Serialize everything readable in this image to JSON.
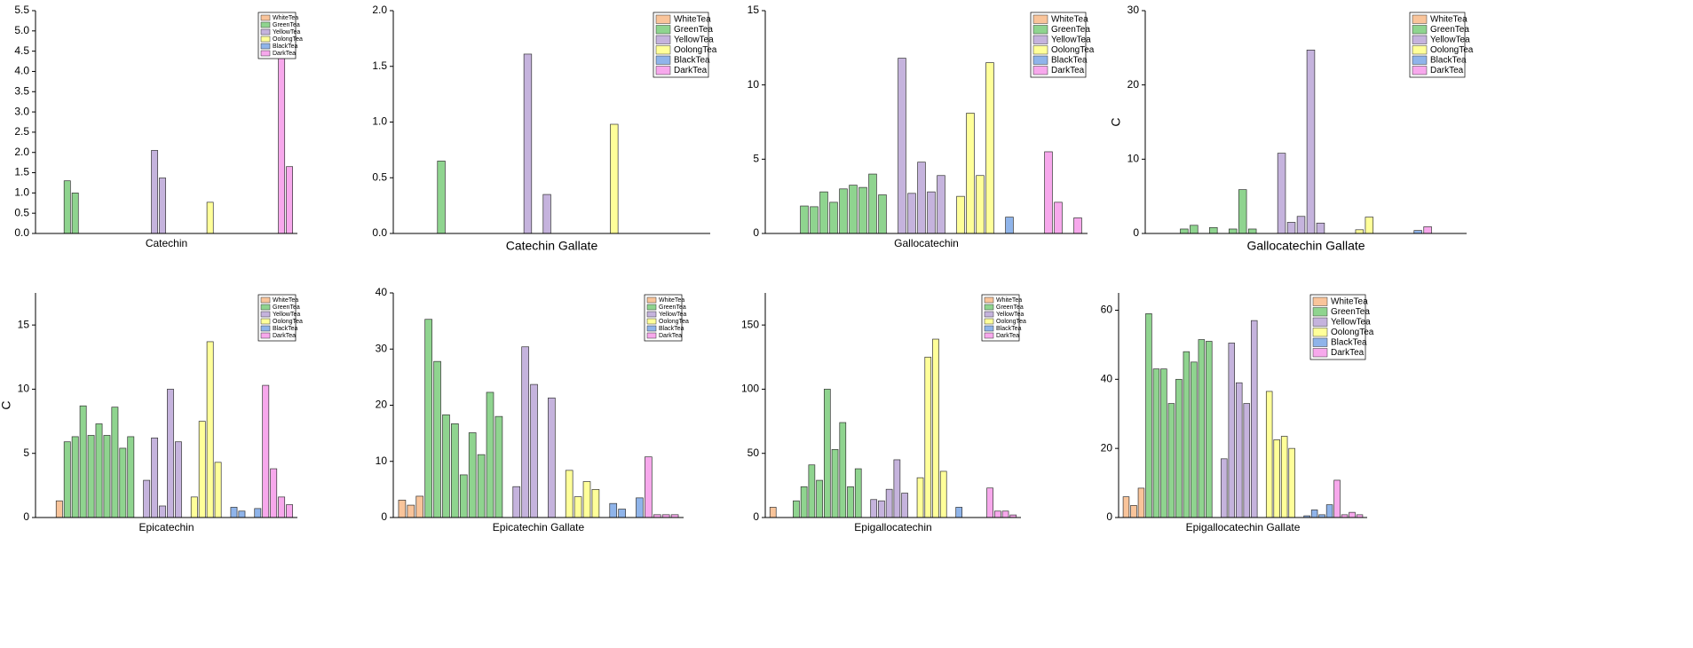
{
  "chart_data": [
    {
      "type": "bar",
      "xlabel": "Catechin",
      "ylim": [
        0,
        5.5
      ],
      "yticks": [
        {
          "value": 0,
          "label": "0.0"
        },
        0.5,
        {
          "value": 1,
          "label": "1.0"
        },
        1.5,
        {
          "value": 2,
          "label": "2.0"
        },
        2.5,
        {
          "value": 3,
          "label": "3.0"
        },
        3.5,
        {
          "value": 4,
          "label": "4.0"
        },
        4.5,
        {
          "value": 5,
          "label": "5.0"
        },
        5.5
      ],
      "series": [
        {
          "name": "WhiteTea",
          "color": "#f9c49a",
          "values": [
            null,
            null,
            null
          ]
        },
        {
          "name": "GreenTea",
          "color": "#8fd48f",
          "values": [
            1.3,
            1.0,
            null,
            null,
            null,
            null,
            null,
            null,
            null,
            null
          ]
        },
        {
          "name": "YellowTea",
          "color": "#c5b3dd",
          "values": [
            null,
            2.05,
            1.37,
            null,
            null,
            null
          ]
        },
        {
          "name": "OolongTea",
          "color": "#ffff99",
          "values": [
            null,
            null,
            0.77,
            null,
            null
          ]
        },
        {
          "name": "BlackTea",
          "color": "#8fb4ea",
          "values": [
            null,
            null,
            null,
            null
          ]
        },
        {
          "name": "DarkTea",
          "color": "#f7a8ec",
          "values": [
            null,
            null,
            4.92,
            1.65
          ]
        }
      ]
    },
    {
      "type": "bar",
      "xlabel": "Catechin Gallate",
      "ylim": [
        0,
        2
      ],
      "yticks": [
        {
          "value": 0,
          "label": "0.0"
        },
        0.5,
        {
          "value": 1,
          "label": "1.0"
        },
        1.5,
        {
          "value": 2,
          "label": "2.0"
        }
      ],
      "series": [
        {
          "name": "WhiteTea",
          "color": "#f9c49a",
          "values": [
            null,
            null,
            null
          ]
        },
        {
          "name": "GreenTea",
          "color": "#8fd48f",
          "values": [
            null,
            0.65,
            null,
            null,
            null,
            null,
            null,
            null,
            null,
            null
          ]
        },
        {
          "name": "YellowTea",
          "color": "#c5b3dd",
          "values": [
            1.61,
            null,
            0.35,
            null,
            null,
            null
          ]
        },
        {
          "name": "OolongTea",
          "color": "#ffff99",
          "values": [
            null,
            null,
            null,
            0.98,
            null
          ]
        },
        {
          "name": "BlackTea",
          "color": "#8fb4ea",
          "values": [
            null,
            null,
            null,
            null
          ]
        },
        {
          "name": "DarkTea",
          "color": "#f7a8ec",
          "values": [
            null,
            null,
            null,
            null
          ]
        }
      ]
    },
    {
      "type": "bar",
      "xlabel": "Gallocatechin",
      "ylim": [
        0,
        15
      ],
      "yticks": [
        0,
        5,
        10,
        15
      ],
      "series": [
        {
          "name": "WhiteTea",
          "color": "#f9c49a",
          "values": [
            null,
            null,
            null
          ]
        },
        {
          "name": "GreenTea",
          "color": "#8fd48f",
          "values": [
            1.85,
            1.8,
            2.8,
            2.1,
            3.0,
            3.25,
            3.1,
            4.0,
            2.6,
            null
          ]
        },
        {
          "name": "YellowTea",
          "color": "#c5b3dd",
          "values": [
            11.8,
            2.7,
            4.8,
            2.8,
            3.9,
            null
          ]
        },
        {
          "name": "OolongTea",
          "color": "#ffff99",
          "values": [
            2.5,
            8.1,
            3.9,
            11.5,
            null
          ]
        },
        {
          "name": "BlackTea",
          "color": "#8fb4ea",
          "values": [
            1.1,
            null,
            null,
            null
          ]
        },
        {
          "name": "DarkTea",
          "color": "#f7a8ec",
          "values": [
            5.5,
            2.1,
            null,
            1.05
          ]
        }
      ]
    },
    {
      "type": "bar",
      "xlabel": "Gallocatechin Gallate",
      "ylabel": "C",
      "ylim": [
        0,
        30
      ],
      "yticks": [
        0,
        10,
        20,
        30
      ],
      "series": [
        {
          "name": "WhiteTea",
          "color": "#f9c49a",
          "values": [
            null,
            null,
            null
          ]
        },
        {
          "name": "GreenTea",
          "color": "#8fd48f",
          "values": [
            0.6,
            1.1,
            null,
            0.8,
            null,
            0.6,
            5.9,
            0.6,
            null,
            null
          ]
        },
        {
          "name": "YellowTea",
          "color": "#c5b3dd",
          "values": [
            10.8,
            1.5,
            2.3,
            24.7,
            1.4,
            null
          ]
        },
        {
          "name": "OolongTea",
          "color": "#ffff99",
          "values": [
            null,
            null,
            0.5,
            2.2,
            null
          ]
        },
        {
          "name": "BlackTea",
          "color": "#8fb4ea",
          "values": [
            null,
            null,
            null,
            0.4
          ]
        },
        {
          "name": "DarkTea",
          "color": "#f7a8ec",
          "values": [
            0.9,
            null,
            null,
            null
          ]
        }
      ]
    },
    {
      "type": "bar",
      "xlabel": "Epicatechin",
      "ylabel": "C",
      "ylim": [
        0,
        17.5
      ],
      "yticks": [
        0,
        5,
        10,
        15
      ],
      "series": [
        {
          "name": "WhiteTea",
          "color": "#f9c49a",
          "values": [
            null,
            null,
            1.3
          ]
        },
        {
          "name": "GreenTea",
          "color": "#8fd48f",
          "values": [
            5.9,
            6.3,
            8.7,
            6.4,
            7.3,
            6.4,
            8.6,
            5.4,
            6.3,
            null
          ]
        },
        {
          "name": "YellowTea",
          "color": "#c5b3dd",
          "values": [
            2.9,
            6.2,
            0.9,
            10.0,
            5.9,
            null
          ]
        },
        {
          "name": "OolongTea",
          "color": "#ffff99",
          "values": [
            1.6,
            7.5,
            13.7,
            4.3,
            null
          ]
        },
        {
          "name": "BlackTea",
          "color": "#8fb4ea",
          "values": [
            0.8,
            0.5,
            null,
            0.7
          ]
        },
        {
          "name": "DarkTea",
          "color": "#f7a8ec",
          "values": [
            10.3,
            3.8,
            1.6,
            1.0
          ]
        }
      ]
    },
    {
      "type": "bar",
      "xlabel": "Epicatechin Gallate",
      "ylim": [
        0,
        40
      ],
      "yticks": [
        0,
        10,
        20,
        30,
        40
      ],
      "series": [
        {
          "name": "WhiteTea",
          "color": "#f9c49a",
          "values": [
            3.1,
            2.2,
            3.8
          ]
        },
        {
          "name": "GreenTea",
          "color": "#8fd48f",
          "values": [
            35.3,
            27.8,
            18.3,
            16.7,
            7.6,
            15.1,
            11.2,
            22.3,
            18.0,
            null
          ]
        },
        {
          "name": "YellowTea",
          "color": "#c5b3dd",
          "values": [
            5.5,
            30.4,
            23.7,
            null,
            21.3,
            null
          ]
        },
        {
          "name": "OolongTea",
          "color": "#ffff99",
          "values": [
            8.4,
            3.7,
            6.4,
            5.0,
            null
          ]
        },
        {
          "name": "BlackTea",
          "color": "#8fb4ea",
          "values": [
            2.5,
            1.5,
            null,
            3.5
          ]
        },
        {
          "name": "DarkTea",
          "color": "#f7a8ec",
          "values": [
            10.8,
            0.5,
            0.5,
            0.5
          ]
        }
      ]
    },
    {
      "type": "bar",
      "xlabel": "Epigallocatechin",
      "ylim": [
        0,
        175
      ],
      "yticks": [
        0,
        50,
        100,
        150
      ],
      "series": [
        {
          "name": "WhiteTea",
          "color": "#f9c49a",
          "values": [
            8,
            null,
            null
          ]
        },
        {
          "name": "GreenTea",
          "color": "#8fd48f",
          "values": [
            13,
            24,
            41,
            29,
            100,
            53,
            74,
            24,
            38,
            null
          ]
        },
        {
          "name": "YellowTea",
          "color": "#c5b3dd",
          "values": [
            14,
            13,
            22,
            45,
            19,
            null
          ]
        },
        {
          "name": "OolongTea",
          "color": "#ffff99",
          "values": [
            31,
            125,
            139,
            36,
            null
          ]
        },
        {
          "name": "BlackTea",
          "color": "#8fb4ea",
          "values": [
            8,
            null,
            null,
            null
          ]
        },
        {
          "name": "DarkTea",
          "color": "#f7a8ec",
          "values": [
            23,
            5,
            5,
            2
          ]
        }
      ]
    },
    {
      "type": "bar",
      "xlabel": "Epigallocatechin Gallate",
      "ylim": [
        0,
        65
      ],
      "yticks": [
        0,
        20,
        40,
        60
      ],
      "series": [
        {
          "name": "WhiteTea",
          "color": "#f9c49a",
          "values": [
            6,
            3.5,
            8.5
          ]
        },
        {
          "name": "GreenTea",
          "color": "#8fd48f",
          "values": [
            59,
            43,
            43,
            33,
            40,
            48,
            45,
            51.5,
            51,
            null
          ]
        },
        {
          "name": "YellowTea",
          "color": "#c5b3dd",
          "values": [
            17,
            50.5,
            39,
            33,
            57,
            null
          ]
        },
        {
          "name": "OolongTea",
          "color": "#ffff99",
          "values": [
            36.5,
            22.5,
            23.5,
            20,
            null
          ]
        },
        {
          "name": "BlackTea",
          "color": "#8fb4ea",
          "values": [
            0.5,
            2.2,
            0.8,
            3.7
          ]
        },
        {
          "name": "DarkTea",
          "color": "#f7a8ec",
          "values": [
            10.8,
            0.8,
            1.5,
            0.8
          ]
        }
      ]
    }
  ]
}
